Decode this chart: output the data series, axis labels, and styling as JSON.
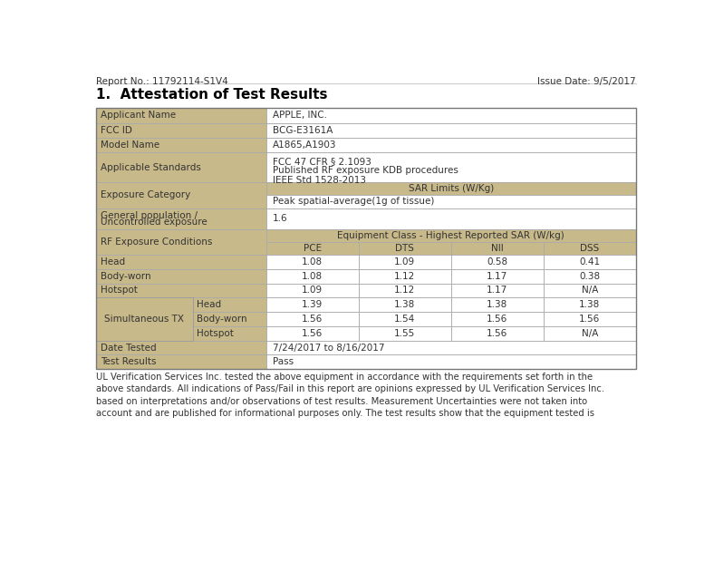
{
  "report_no": "Report No.: 11792114-S1V4",
  "issue_date": "Issue Date: 9/5/2017",
  "section_title": "1.  Attestation of Test Results",
  "header_bg": "#c8b98a",
  "white_bg": "#ffffff",
  "border_color": "#999999",
  "text_color": "#333333",
  "col_labels": [
    "PCE",
    "DTS",
    "NII",
    "DSS"
  ],
  "data_rows": [
    {
      "label": "Head",
      "sub": "",
      "values": [
        "1.08",
        "1.09",
        "0.58",
        "0.41"
      ]
    },
    {
      "label": "Body-worn",
      "sub": "",
      "values": [
        "1.08",
        "1.12",
        "1.17",
        "0.38"
      ]
    },
    {
      "label": "Hotspot",
      "sub": "",
      "values": [
        "1.09",
        "1.12",
        "1.17",
        "N/A"
      ]
    }
  ],
  "sim_rows": [
    {
      "sub": "Head",
      "values": [
        "1.39",
        "1.38",
        "1.38",
        "1.38"
      ]
    },
    {
      "sub": "Body-worn",
      "values": [
        "1.56",
        "1.54",
        "1.56",
        "1.56"
      ]
    },
    {
      "sub": "Hotspot",
      "values": [
        "1.56",
        "1.55",
        "1.56",
        "N/A"
      ]
    }
  ],
  "footer_text": "UL Verification Services Inc. tested the above equipment in accordance with the requirements set forth in the above standards. All indications of Pass/Fail in this report are opinions expressed by UL Verification Services Inc. based on interpretations and/or observations of test results. Measurement Uncertainties were not taken into account and are published for informational purposes only. The test results show that the equipment tested is"
}
